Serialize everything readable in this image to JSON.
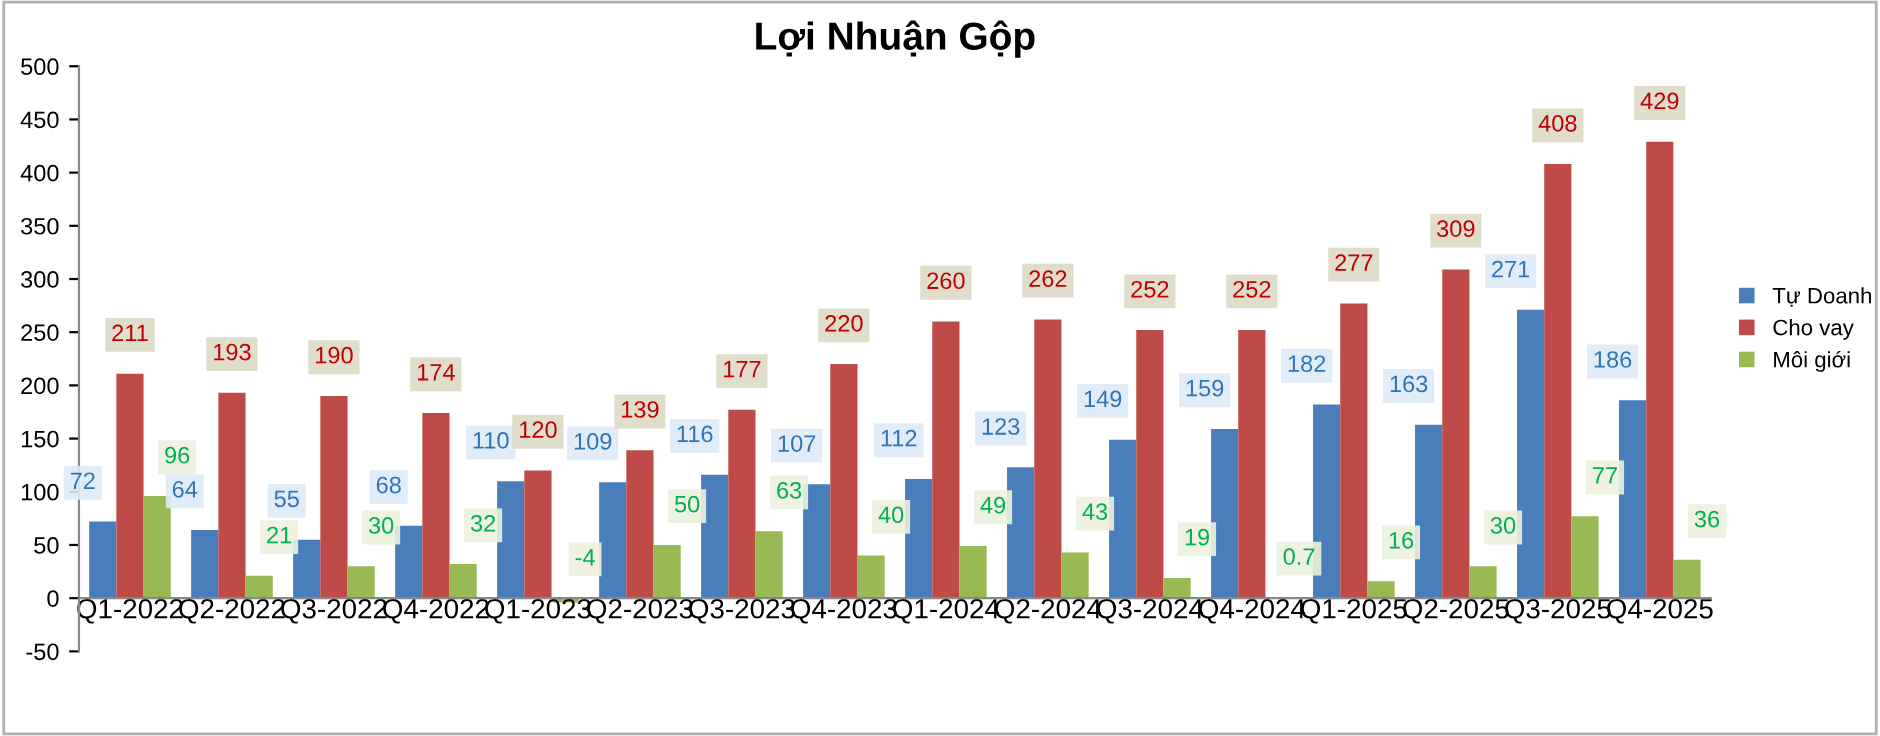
{
  "chart_data": {
    "type": "bar",
    "title": "Lợi Nhuận Gộp",
    "categories": [
      "Q1-2022",
      "Q2-2022",
      "Q3-2022",
      "Q4-2022",
      "Q1-2023",
      "Q2-2023",
      "Q3-2023",
      "Q4-2023",
      "Q1-2024",
      "Q2-2024",
      "Q3-2024",
      "Q4-2024",
      "Q1-2025",
      "Q2-2025",
      "Q3-2025",
      "Q4-2025"
    ],
    "series": [
      {
        "name": "Tự Doanh",
        "color": "#4a7ebb",
        "values": [
          72,
          64,
          55,
          68,
          110,
          109,
          116,
          107,
          112,
          123,
          149,
          159,
          182,
          163,
          271,
          186
        ]
      },
      {
        "name": "Cho vay",
        "color": "#be4b48",
        "values": [
          211,
          193,
          190,
          174,
          120,
          139,
          177,
          220,
          260,
          262,
          252,
          252,
          277,
          309,
          408,
          429
        ]
      },
      {
        "name": "Môi giới",
        "color": "#98b954",
        "values": [
          96,
          21,
          30,
          32,
          -4,
          50,
          63,
          40,
          49,
          43,
          19,
          0.7,
          16,
          30,
          77,
          36
        ]
      }
    ],
    "ylim": [
      -50,
      500
    ],
    "yticks": [
      -50,
      0,
      50,
      100,
      150,
      200,
      250,
      300,
      350,
      400,
      450,
      500
    ],
    "grid": false,
    "legend": "right",
    "data_labels": true
  }
}
